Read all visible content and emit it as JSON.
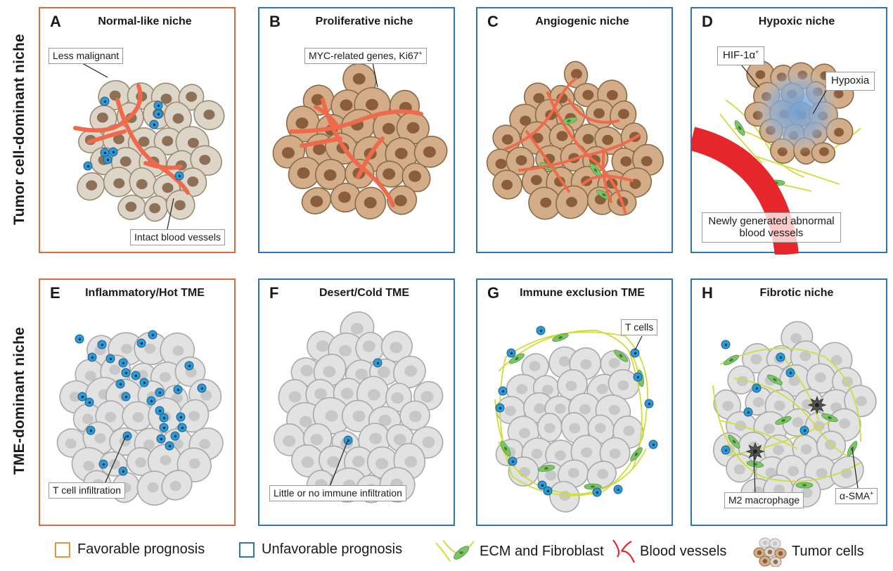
{
  "rows": [
    {
      "label": "Tumor cell-dominant niche"
    },
    {
      "label": "TME-dominant niche"
    }
  ],
  "panels": [
    {
      "letter": "A",
      "title": "Normal-like niche",
      "prognosis": "favorable"
    },
    {
      "letter": "B",
      "title": "Proliferative niche",
      "prognosis": "unfavorable"
    },
    {
      "letter": "C",
      "title": "Angiogenic niche",
      "prognosis": "unfavorable"
    },
    {
      "letter": "D",
      "title": "Hypoxic niche",
      "prognosis": "unfavorable"
    },
    {
      "letter": "E",
      "title": "Inflammatory/Hot TME",
      "prognosis": "favorable"
    },
    {
      "letter": "F",
      "title": "Desert/Cold TME",
      "prognosis": "unfavorable"
    },
    {
      "letter": "G",
      "title": "Immune exclusion TME",
      "prognosis": "unfavorable"
    },
    {
      "letter": "H",
      "title": "Fibrotic niche",
      "prognosis": "unfavorable"
    }
  ],
  "callouts": {
    "less_malignant": "Less malignant",
    "intact_vessels": "Intact blood vessels",
    "myc_genes": "MYC-related genes, Ki67",
    "myc_sup": "+",
    "hif": "HIF-1α",
    "hif_sup": "+",
    "hypoxia": "Hypoxia",
    "new_vessels": "Newly generated abnormal blood vessels",
    "t_infiltration": "T cell infiltration",
    "no_infiltration": "Little or no immune infiltration",
    "t_cells": "T cells",
    "m2": "M2 macrophage",
    "sma": "α-SMA",
    "sma_sup": "+"
  },
  "legend": {
    "favorable": "Favorable prognosis",
    "unfavorable": "Unfavorable prognosis",
    "ecm": "ECM and Fibroblast",
    "vessels": "Blood vessels",
    "tumor": "Tumor cells"
  },
  "colors": {
    "favorable_border": "#e06a40",
    "unfavorable_border": "#2f74b5",
    "tumor_tan": "#d2ad87",
    "tumor_light": "#ddd5c8",
    "tumor_gray": "#e2e2e2",
    "vessel_orange": "#ef6a4a",
    "vessel_red": "#e5262b",
    "tcell_blue": "#2b9bd8",
    "ecm_yellow": "#cfdc3c",
    "fibroblast_green": "#7cc46a",
    "hypoxia_blue": "#6f9fd8"
  }
}
